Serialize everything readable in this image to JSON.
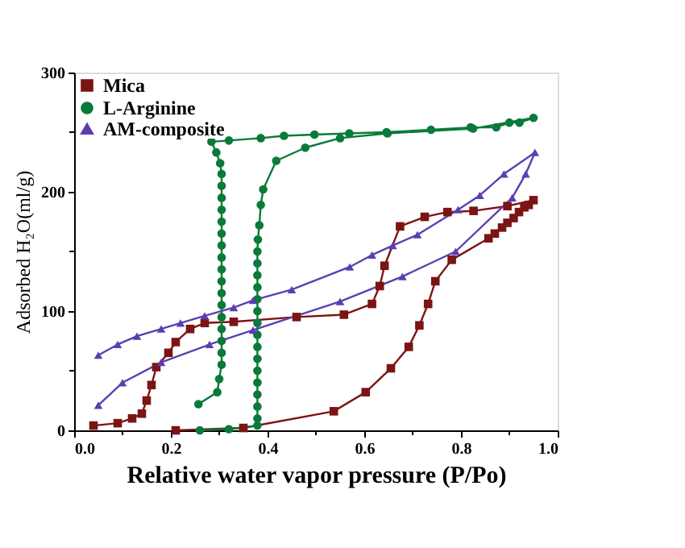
{
  "chart_data": {
    "type": "line",
    "xlabel": "Relative water vapor pressure (P/Po)",
    "ylabel": "Adsorbed H₂O(ml/g)",
    "xlim": [
      0,
      1
    ],
    "ylim": [
      0,
      300
    ],
    "xticks": [
      {
        "value": 0,
        "label": "0.0"
      },
      {
        "value": 0.1,
        "label": null
      },
      {
        "value": 0.2,
        "label": "0.2"
      },
      {
        "value": 0.3,
        "label": null
      },
      {
        "value": 0.4,
        "label": "0.4"
      },
      {
        "value": 0.5,
        "label": null
      },
      {
        "value": 0.6,
        "label": "0.6"
      },
      {
        "value": 0.7,
        "label": null
      },
      {
        "value": 0.8,
        "label": "0.8"
      },
      {
        "value": 0.9,
        "label": null
      },
      {
        "value": 1,
        "label": "1.0"
      }
    ],
    "yticks": [
      0,
      {
        "value": 50,
        "label": null
      },
      100,
      {
        "value": 150,
        "label": null
      },
      200,
      {
        "value": 250,
        "label": null
      },
      300
    ],
    "grid": false,
    "legend": "top left",
    "series": [
      {
        "name": "Mica",
        "color": "#7b1414",
        "marker": "square",
        "x": [
          0.21,
          0.35,
          0.537,
          0.603,
          0.655,
          0.692,
          0.714,
          0.732,
          0.747,
          0.781,
          0.857,
          0.87,
          0.885,
          0.896,
          0.909,
          0.92,
          0.931,
          0.94,
          0.95,
          0.896,
          0.826,
          0.772,
          0.725,
          0.674,
          0.642,
          0.632,
          0.616,
          0.558,
          0.46,
          0.38,
          0.33,
          0.27,
          0.24,
          0.21,
          0.195,
          0.17,
          0.16,
          0.15,
          0.14,
          0.12,
          0.09,
          0.04
        ],
        "values": [
          0,
          2,
          16,
          32,
          52,
          70,
          88,
          106,
          125,
          143,
          161,
          165,
          170,
          174,
          178,
          183,
          187,
          189,
          193,
          188,
          184,
          183,
          179,
          171,
          138,
          121,
          106,
          97,
          95,
          null,
          91,
          90,
          85,
          74,
          65,
          53,
          38,
          25,
          14,
          10,
          6,
          4
        ]
      },
      {
        "name": "L-Arginine",
        "color": "#0a7a3a",
        "marker": "circle",
        "x": [
          0.26,
          0.32,
          0.379,
          0.379,
          0.379,
          0.379,
          0.379,
          0.379,
          0.379,
          0.379,
          0.379,
          0.379,
          0.379,
          0.379,
          0.379,
          0.379,
          0.379,
          0.379,
          0.38,
          0.383,
          0.386,
          0.391,
          0.418,
          0.478,
          0.55,
          0.648,
          0.825,
          0.95,
          0.921,
          0.9,
          0.873,
          0.82,
          0.738,
          0.646,
          0.569,
          0.497,
          0.434,
          0.386,
          0.32,
          0.284,
          0.294,
          0.302,
          0.305,
          0.305,
          0.305,
          0.305,
          0.305,
          0.305,
          0.305,
          0.305,
          0.305,
          0.305,
          0.305,
          0.305,
          0.305,
          0.305,
          0.305,
          0.305,
          0.305,
          0.3,
          0.296,
          0.257
        ],
        "values": [
          0,
          1,
          4,
          10,
          20,
          30,
          40,
          50,
          60,
          70,
          80,
          90,
          100,
          110,
          120,
          130,
          140,
          150,
          160,
          172,
          189,
          202,
          226,
          237,
          245,
          249,
          253,
          262,
          258,
          258,
          254,
          254,
          252,
          250,
          249,
          248,
          247,
          245,
          243,
          242,
          233,
          224,
          215,
          205,
          195,
          185,
          175,
          165,
          155,
          145,
          135,
          125,
          115,
          105,
          95,
          85,
          75,
          65,
          55,
          43,
          32,
          22
        ]
      },
      {
        "name": "AM-composite",
        "color": "#5b3fb0",
        "marker": "triangle",
        "x": [
          0.05,
          0.1,
          0.18,
          0.28,
          0.37,
          0.55,
          0.679,
          0.789,
          0.906,
          0.934,
          0.953,
          0.889,
          0.839,
          0.794,
          0.71,
          0.659,
          0.616,
          0.57,
          0.45,
          0.37,
          0.33,
          0.27,
          0.22,
          0.18,
          0.13,
          0.09,
          0.05
        ],
        "values": [
          21,
          40,
          57,
          72,
          84,
          108,
          129,
          150,
          195,
          215,
          233,
          215,
          197,
          185,
          164,
          155,
          147,
          137,
          118,
          109,
          103,
          96,
          90,
          85,
          79,
          72,
          63
        ]
      }
    ]
  }
}
